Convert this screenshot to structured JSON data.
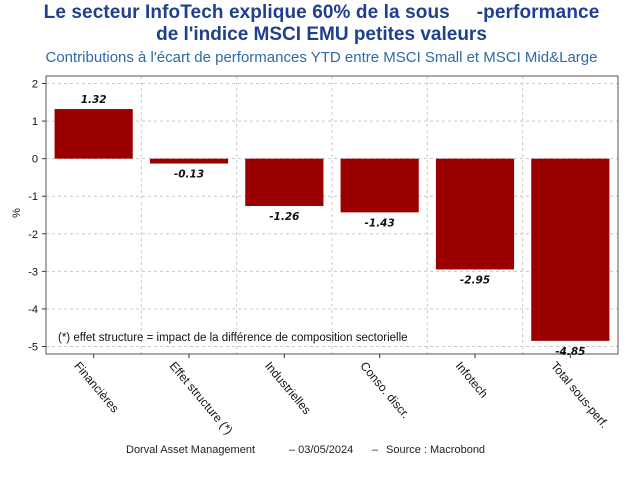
{
  "header": {
    "title_line1": "Le secteur InfoTech explique 60% de la sous     -performance",
    "title_line2": "de l'indice MSCI EMU petites valeurs",
    "subtitle": "Contributions à l'écart de performances YTD entre MSCI Small et MSCI Mid&Large"
  },
  "chart_data": {
    "type": "bar",
    "categories": [
      "Financières",
      "Effet structure (*)",
      "Industrielles",
      "Conso. discr.",
      "Infotech",
      "Total sous-perf."
    ],
    "values": [
      1.32,
      -0.13,
      -1.26,
      -1.43,
      -2.95,
      -4.85
    ],
    "value_labels": [
      "1.32",
      "-0.13",
      "-1.26",
      "-1.43",
      "-2.95",
      "-4.85"
    ],
    "ylabel": "%",
    "ylim": [
      -5.2,
      2.2
    ],
    "yticks": [
      2,
      1,
      0,
      -1,
      -2,
      -3,
      -4,
      -5
    ],
    "ytick_labels": [
      "2",
      "1",
      "0",
      "-1",
      "-2",
      "-3",
      "-4",
      "-5"
    ],
    "grid": true,
    "bar_color": "#9b0000",
    "annotation": "(*) effet structure = impact de la différence de composition sectorielle"
  },
  "footer": {
    "source_org": "Dorval Asset Management",
    "date": "– 03/05/2024",
    "separator": "–",
    "source": "Source : Macrobond"
  }
}
